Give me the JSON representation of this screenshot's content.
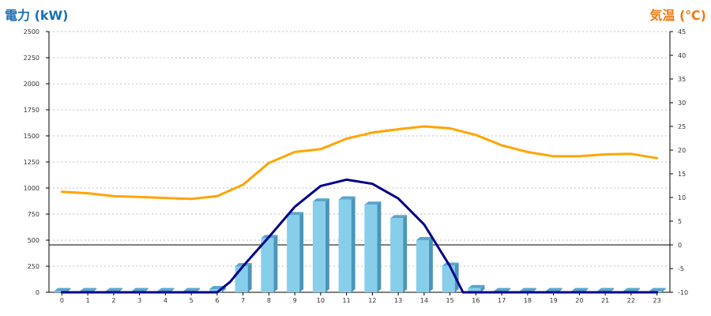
{
  "chart_data": {
    "type": "bar",
    "ylabel_left": "電力 (kW)",
    "ylabel_right": "気温 (℃)",
    "colors": {
      "left_axis_title": "#1a6fb5",
      "right_axis_title": "#f07a12",
      "bars_front": "#87ceeb",
      "bars_side": "#4a95b8",
      "bars_top": "#5aa6cc",
      "power_line": "#00008b",
      "temperature_line": "#ffa500",
      "grid": "#bfbfbf",
      "zero_line": "#000000"
    },
    "categories": [
      "0",
      "1",
      "2",
      "3",
      "4",
      "5",
      "6",
      "7",
      "8",
      "9",
      "10",
      "11",
      "12",
      "13",
      "14",
      "15",
      "16",
      "17",
      "18",
      "19",
      "20",
      "21",
      "22",
      "23"
    ],
    "ylim_left": [
      0,
      2500
    ],
    "yticks_left": [
      0,
      250,
      500,
      750,
      1000,
      1250,
      1500,
      1750,
      2000,
      2250,
      2500
    ],
    "ylim_right": [
      -10,
      45
    ],
    "yticks_right": [
      -10,
      -5,
      0,
      5,
      10,
      15,
      20,
      25,
      30,
      35,
      40,
      45
    ],
    "grid": true,
    "series": [
      {
        "type": "bar",
        "axis": "left",
        "values": [
          0,
          0,
          0,
          0,
          0,
          0,
          30,
          250,
          520,
          740,
          870,
          890,
          840,
          710,
          500,
          255,
          40,
          0,
          0,
          0,
          0,
          0,
          0,
          0
        ]
      },
      {
        "type": "line",
        "axis": "left",
        "x": [
          0,
          1,
          2,
          3,
          4,
          5,
          6,
          6.5,
          7,
          8,
          9,
          10,
          11,
          12,
          13,
          14,
          15,
          15.5,
          16,
          17,
          18,
          19,
          20,
          21,
          22,
          23
        ],
        "values": [
          0,
          0,
          0,
          0,
          0,
          0,
          0,
          100,
          250,
          530,
          820,
          1020,
          1080,
          1040,
          900,
          650,
          250,
          0,
          0,
          0,
          0,
          0,
          0,
          0,
          0,
          0
        ]
      },
      {
        "type": "line",
        "axis": "right",
        "values": [
          11.2,
          10.9,
          10.3,
          10.1,
          9.9,
          9.7,
          10.3,
          12.7,
          17.3,
          19.6,
          20.2,
          22.4,
          23.7,
          24.4,
          25.0,
          24.6,
          23.2,
          21.0,
          19.6,
          18.7,
          18.7,
          19.1,
          19.2,
          18.3
        ]
      }
    ]
  }
}
